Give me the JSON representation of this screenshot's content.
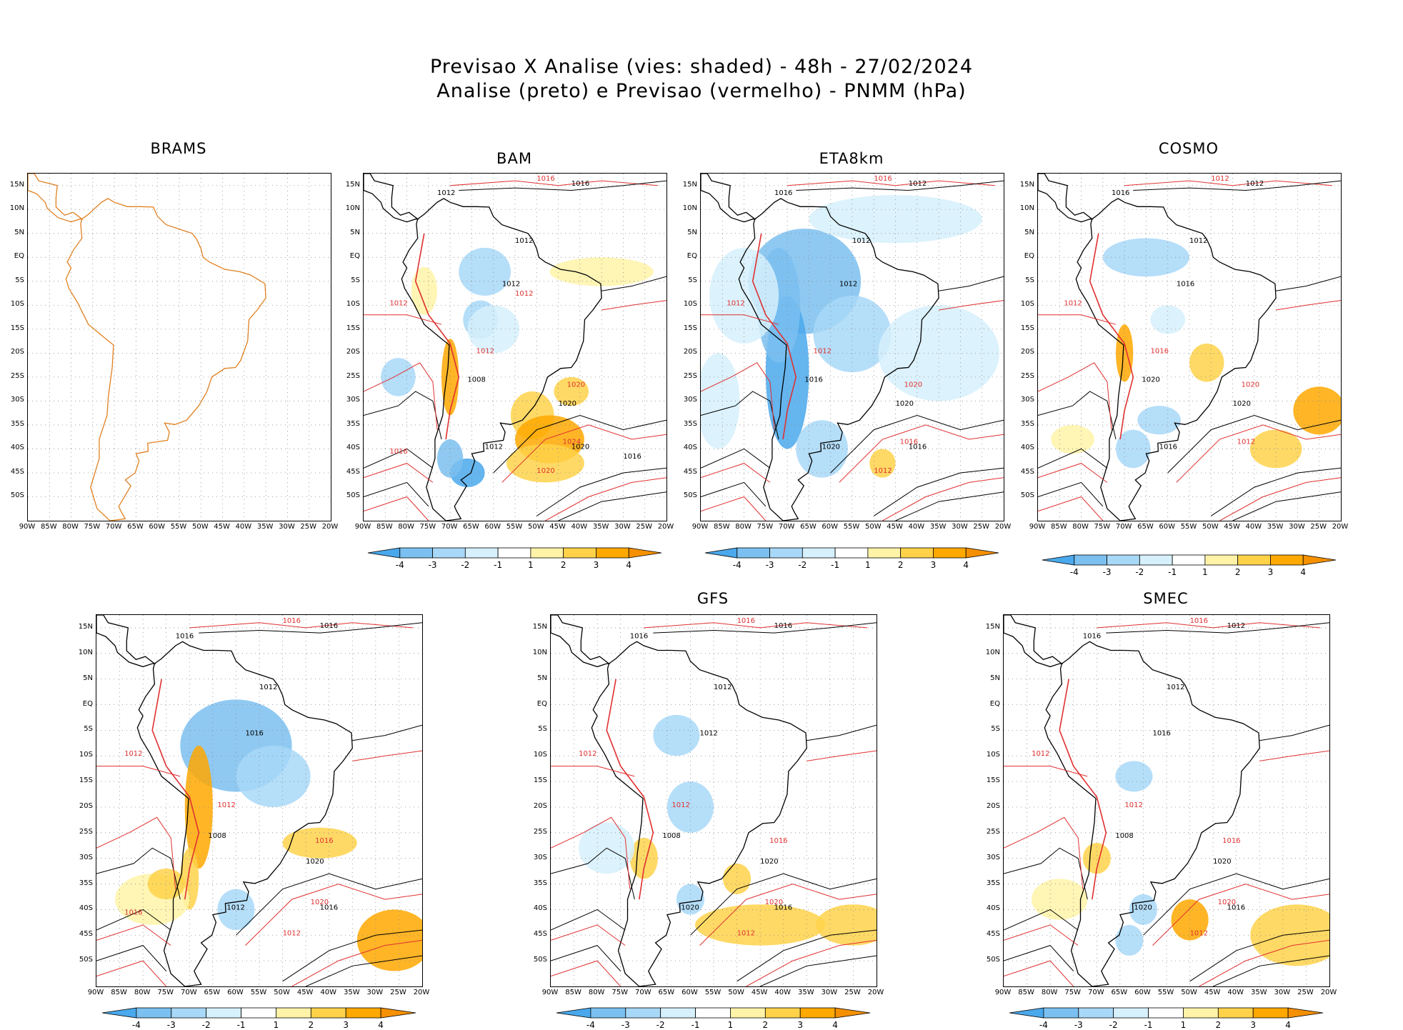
{
  "title": {
    "line1": "Previsao X Analise (vies: shaded) - 48h - 27/02/2024",
    "line2": "Analise (preto) e Previsao (vermelho) - PNMM (hPa)"
  },
  "axes": {
    "lat_labels": [
      "15N",
      "10N",
      "5N",
      "EQ",
      "5S",
      "10S",
      "15S",
      "20S",
      "25S",
      "30S",
      "35S",
      "40S",
      "45S",
      "50S"
    ],
    "lon_labels": [
      "90W",
      "85W",
      "80W",
      "75W",
      "70W",
      "65W",
      "60W",
      "55W",
      "50W",
      "45W",
      "40W",
      "35W",
      "30W",
      "25W",
      "20W"
    ]
  },
  "colorbar": {
    "labels": [
      "-4",
      "-3",
      "-2",
      "-1",
      "1",
      "2",
      "3",
      "4"
    ],
    "colors": [
      "#4aa8ec",
      "#7bc0f0",
      "#a8d8f8",
      "#d6f0fc",
      "#ffffff",
      "#fff3a8",
      "#ffd24a",
      "#ffa800",
      "#f59000"
    ]
  },
  "colors": {
    "analysis": "#000000",
    "forecast": "#e03030",
    "border": "#e08020"
  },
  "panels": [
    {
      "id": "brams",
      "title": "BRAMS",
      "has_colorbar": false
    },
    {
      "id": "bam",
      "title": "BAM",
      "has_colorbar": true
    },
    {
      "id": "eta8km",
      "title": "ETA8km",
      "has_colorbar": true
    },
    {
      "id": "cosmo",
      "title": "COSMO",
      "has_colorbar": true
    },
    {
      "id": "wrf",
      "title": "",
      "has_colorbar": true
    },
    {
      "id": "gfs",
      "title": "GFS",
      "has_colorbar": true
    },
    {
      "id": "smec",
      "title": "SMEC",
      "has_colorbar": true
    }
  ],
  "contour_labels": {
    "bam": {
      "black": [
        "1012",
        "1016",
        "1012",
        "1012",
        "1008",
        "1020",
        "1012",
        "1020",
        "1016"
      ],
      "red": [
        "1016",
        "1012",
        "1012",
        "1020",
        "1024",
        "1020",
        "1016",
        "1012"
      ]
    },
    "eta8km": {
      "black": [
        "1016",
        "1012",
        "1012",
        "1012",
        "1016",
        "1020",
        "1020",
        "1016"
      ],
      "red": [
        "1016",
        "1012",
        "1012",
        "1020",
        "1016",
        "1012"
      ]
    },
    "cosmo": {
      "black": [
        "1016",
        "1012",
        "1012",
        "1016",
        "1020",
        "1020",
        "1016"
      ],
      "red": [
        "1012",
        "1012",
        "1016",
        "1020",
        "1012"
      ]
    },
    "wrf": {
      "black": [
        "1016",
        "1016",
        "1012",
        "1016",
        "1008",
        "1020",
        "1012",
        "1016"
      ],
      "red": [
        "1016",
        "1012",
        "1012",
        "1016",
        "1020",
        "1012",
        "1016"
      ]
    },
    "gfs": {
      "black": [
        "1016",
        "1016",
        "1012",
        "1012",
        "1008",
        "1020",
        "1020",
        "1016"
      ],
      "red": [
        "1016",
        "1012",
        "1012",
        "1016",
        "1020",
        "1012"
      ]
    },
    "smec": {
      "black": [
        "1016",
        "1012",
        "1012",
        "1016",
        "1008",
        "1020",
        "1020",
        "1016"
      ],
      "red": [
        "1016",
        "1012",
        "1012",
        "1016",
        "1020",
        "1012"
      ]
    }
  }
}
